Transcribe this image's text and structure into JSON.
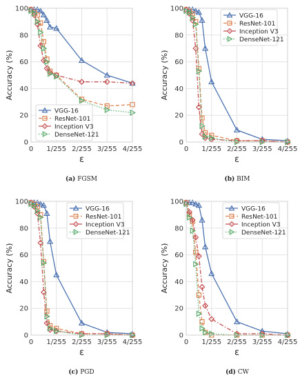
{
  "chart_data": [
    {
      "type": "line",
      "caption_prefix": "(a)",
      "caption": "FGSM",
      "xlabel": "ε",
      "ylabel": "Accuracy (%)",
      "x_ticks": [
        "0",
        "1/255",
        "2/255",
        "3/255",
        "4/255"
      ],
      "y_ticks": [
        "0",
        "20",
        "40",
        "60",
        "80",
        "100"
      ],
      "xlim": [
        0,
        4
      ],
      "ylim": [
        0,
        100
      ],
      "grid": true,
      "legend_position": "bottom-left",
      "series": [
        {
          "name": "VGG-16",
          "color": "#4c72b0",
          "marker": "triangle-up",
          "dash": "solid",
          "x": [
            0,
            0.125,
            0.25,
            0.375,
            0.5,
            0.625,
            0.75,
            1,
            2,
            3,
            4
          ],
          "y": [
            99,
            99,
            99,
            98,
            95,
            91,
            86,
            85,
            61,
            50,
            44
          ]
        },
        {
          "name": "ResNet-101",
          "color": "#dd8452",
          "marker": "square",
          "dash": "dashed",
          "x": [
            0,
            0.125,
            0.25,
            0.375,
            0.5,
            0.625,
            0.75,
            1,
            2,
            3,
            4
          ],
          "y": [
            99,
            97,
            95,
            89,
            75,
            62,
            53,
            50,
            32,
            27,
            28
          ]
        },
        {
          "name": "Inception V3",
          "color": "#c44e52",
          "marker": "diamond",
          "dash": "dashdot",
          "x": [
            0,
            0.125,
            0.25,
            0.375,
            0.5,
            0.625,
            0.75,
            1,
            2,
            3,
            4
          ],
          "y": [
            99,
            95,
            88,
            72,
            61,
            55,
            52,
            50,
            45,
            45,
            44
          ]
        },
        {
          "name": "DenseNet-121",
          "color": "#55a868",
          "marker": "triangle-right",
          "dash": "dotted",
          "x": [
            0,
            0.125,
            0.25,
            0.375,
            0.5,
            0.625,
            0.75,
            1,
            2,
            3,
            4
          ],
          "y": [
            98,
            96,
            90,
            82,
            70,
            60,
            51,
            49,
            31,
            24,
            22
          ]
        }
      ]
    },
    {
      "type": "line",
      "caption_prefix": "(b)",
      "caption": "BIM",
      "xlabel": "ε",
      "ylabel": "Accuracy (%)",
      "x_ticks": [
        "0",
        "1/255",
        "2/255",
        "3/255",
        "4/255"
      ],
      "y_ticks": [
        "0",
        "20",
        "40",
        "60",
        "80",
        "100"
      ],
      "xlim": [
        0,
        4
      ],
      "ylim": [
        0,
        100
      ],
      "grid": true,
      "legend_position": "top-right",
      "series": [
        {
          "name": "VGG-16",
          "color": "#4c72b0",
          "marker": "triangle-up",
          "dash": "solid",
          "x": [
            0,
            0.125,
            0.25,
            0.375,
            0.5,
            0.625,
            0.75,
            1,
            2,
            3,
            4
          ],
          "y": [
            99,
            99,
            99,
            98,
            97,
            91,
            70,
            45,
            9,
            2,
            1
          ]
        },
        {
          "name": "ResNet-101",
          "color": "#dd8452",
          "marker": "square",
          "dash": "dashed",
          "x": [
            0,
            0.125,
            0.25,
            0.375,
            0.5,
            0.625,
            0.75,
            1,
            2,
            3,
            4
          ],
          "y": [
            99,
            98,
            96,
            90,
            55,
            18,
            7,
            5,
            1,
            1,
            0
          ]
        },
        {
          "name": "Inception V3",
          "color": "#c44e52",
          "marker": "diamond",
          "dash": "dashdot",
          "x": [
            0,
            0.125,
            0.25,
            0.375,
            0.5,
            0.625,
            0.75,
            1,
            2,
            3,
            4
          ],
          "y": [
            99,
            96,
            91,
            70,
            26,
            6,
            3,
            2,
            1,
            1,
            0
          ]
        },
        {
          "name": "DenseNet-121",
          "color": "#55a868",
          "marker": "triangle-right",
          "dash": "dotted",
          "x": [
            0,
            0.125,
            0.25,
            0.375,
            0.5,
            0.625,
            0.75,
            1,
            2,
            3,
            4
          ],
          "y": [
            98,
            97,
            93,
            88,
            53,
            12,
            4,
            3,
            0,
            0,
            0
          ]
        }
      ]
    },
    {
      "type": "line",
      "caption_prefix": "(c)",
      "caption": "PGD",
      "xlabel": "ε",
      "ylabel": "Accuracy (%)",
      "x_ticks": [
        "0",
        "1/255",
        "2/255",
        "3/255",
        "4/255"
      ],
      "y_ticks": [
        "0",
        "20",
        "40",
        "60",
        "80",
        "100"
      ],
      "xlim": [
        0,
        4
      ],
      "ylim": [
        0,
        100
      ],
      "grid": true,
      "legend_position": "top-right",
      "series": [
        {
          "name": "VGG-16",
          "color": "#4c72b0",
          "marker": "triangle-up",
          "dash": "solid",
          "x": [
            0,
            0.125,
            0.25,
            0.375,
            0.5,
            0.625,
            0.75,
            1,
            2,
            3,
            4
          ],
          "y": [
            99,
            99,
            99,
            98,
            97,
            91,
            70,
            45,
            9,
            2,
            1
          ]
        },
        {
          "name": "ResNet-101",
          "color": "#dd8452",
          "marker": "square",
          "dash": "dashed",
          "x": [
            0,
            0.125,
            0.25,
            0.375,
            0.5,
            0.625,
            0.75,
            1,
            2,
            3,
            4
          ],
          "y": [
            99,
            98,
            96,
            90,
            55,
            18,
            7,
            5,
            1,
            1,
            0
          ]
        },
        {
          "name": "Inception V3",
          "color": "#c44e52",
          "marker": "diamond",
          "dash": "dashdot",
          "x": [
            0,
            0.125,
            0.25,
            0.375,
            0.5,
            0.625,
            0.75,
            1,
            2,
            3,
            4
          ],
          "y": [
            99,
            96,
            91,
            69,
            32,
            9,
            4,
            3,
            1,
            1,
            0
          ]
        },
        {
          "name": "DenseNet-121",
          "color": "#55a868",
          "marker": "triangle-right",
          "dash": "dotted",
          "x": [
            0,
            0.125,
            0.25,
            0.375,
            0.5,
            0.625,
            0.75,
            1,
            2,
            3,
            4
          ],
          "y": [
            98,
            97,
            93,
            88,
            54,
            14,
            5,
            3,
            0,
            0,
            0
          ]
        }
      ]
    },
    {
      "type": "line",
      "caption_prefix": "(d)",
      "caption": "CW",
      "xlabel": "ε",
      "ylabel": "Accuracy (%)",
      "x_ticks": [
        "0",
        "1/255",
        "2/255",
        "3/255",
        "4/255"
      ],
      "y_ticks": [
        "0",
        "20",
        "40",
        "60",
        "80",
        "100"
      ],
      "xlim": [
        0,
        4
      ],
      "ylim": [
        0,
        100
      ],
      "grid": true,
      "legend_position": "top-right",
      "series": [
        {
          "name": "VGG-16",
          "color": "#4c72b0",
          "marker": "triangle-up",
          "dash": "solid",
          "x": [
            0,
            0.125,
            0.25,
            0.375,
            0.5,
            0.625,
            0.75,
            1,
            2,
            3,
            4
          ],
          "y": [
            99,
            99,
            99,
            98,
            97,
            86,
            66,
            46,
            10,
            3,
            1
          ]
        },
        {
          "name": "ResNet-101",
          "color": "#dd8452",
          "marker": "square",
          "dash": "dashed",
          "x": [
            0,
            0.125,
            0.25,
            0.375,
            0.5,
            0.625,
            0.75,
            1,
            2,
            3,
            4
          ],
          "y": [
            99,
            90,
            85,
            62,
            30,
            10,
            2,
            0,
            0,
            0,
            0
          ]
        },
        {
          "name": "Inception V3",
          "color": "#c44e52",
          "marker": "diamond",
          "dash": "dashdot",
          "x": [
            0,
            0.125,
            0.25,
            0.375,
            0.5,
            0.625,
            0.75,
            1,
            2,
            3,
            4
          ],
          "y": [
            99,
            92,
            86,
            73,
            59,
            36,
            22,
            12,
            1,
            1,
            0
          ]
        },
        {
          "name": "DenseNet-121",
          "color": "#55a868",
          "marker": "triangle-right",
          "dash": "dotted",
          "x": [
            0,
            0.125,
            0.25,
            0.375,
            0.5,
            0.625,
            0.75,
            1,
            2,
            3,
            4
          ],
          "y": [
            98,
            88,
            78,
            53,
            16,
            5,
            2,
            1,
            0,
            0,
            0
          ]
        }
      ]
    }
  ]
}
